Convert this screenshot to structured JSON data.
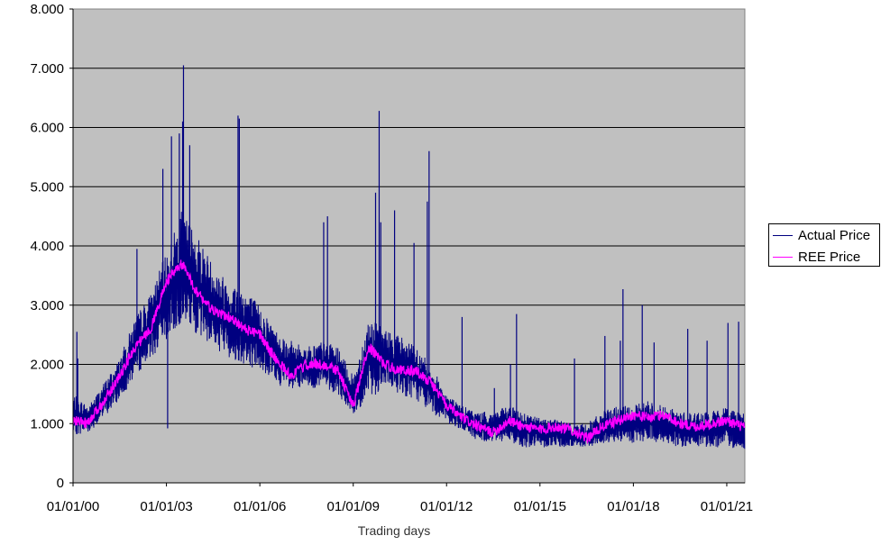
{
  "chart_data": {
    "type": "line",
    "title": "",
    "xlabel": "Trading days",
    "ylabel": "",
    "ylim": [
      0,
      8
    ],
    "yticks": [
      "0",
      "1.000",
      "2.000",
      "3.000",
      "4.000",
      "5.000",
      "6.000",
      "7.000",
      "8.000"
    ],
    "xlim": [
      "2000-01-01",
      "2021-08-01"
    ],
    "xticks": [
      "01/01/00",
      "01/01/03",
      "01/01/06",
      "01/01/09",
      "01/01/12",
      "01/01/15",
      "01/01/18",
      "01/01/21"
    ],
    "grid": "horizontal",
    "background": "#c0c0c0",
    "legend_position": "right",
    "series": [
      {
        "name": "Actual Price",
        "color": "#000080",
        "x": [
          "2000-01-01",
          "2000-07-01",
          "2001-01-01",
          "2001-07-01",
          "2002-01-01",
          "2002-07-01",
          "2003-01-01",
          "2003-07-01",
          "2004-01-01",
          "2004-07-01",
          "2005-01-01",
          "2005-07-01",
          "2006-01-01",
          "2006-07-01",
          "2007-01-01",
          "2007-07-01",
          "2008-01-01",
          "2008-07-01",
          "2009-01-01",
          "2009-07-01",
          "2010-01-01",
          "2010-07-01",
          "2011-01-01",
          "2011-07-01",
          "2012-01-01",
          "2012-07-01",
          "2013-01-01",
          "2013-07-01",
          "2014-01-01",
          "2014-07-01",
          "2015-01-01",
          "2015-07-01",
          "2016-01-01",
          "2016-07-01",
          "2017-01-01",
          "2017-07-01",
          "2018-01-01",
          "2018-07-01",
          "2019-01-01",
          "2019-07-01",
          "2020-01-01",
          "2020-07-01",
          "2021-01-01",
          "2021-07-01"
        ],
        "low": [
          0.8,
          0.85,
          1.1,
          1.4,
          1.8,
          2.1,
          2.4,
          2.7,
          2.5,
          2.3,
          2.1,
          2.0,
          1.9,
          1.7,
          1.5,
          1.6,
          1.6,
          1.5,
          1.1,
          1.4,
          1.6,
          1.5,
          1.4,
          1.2,
          1.0,
          0.9,
          0.7,
          0.7,
          0.7,
          0.6,
          0.6,
          0.6,
          0.6,
          0.6,
          0.65,
          0.7,
          0.65,
          0.7,
          0.65,
          0.6,
          0.6,
          0.6,
          0.6,
          0.55
        ],
        "high": [
          1.5,
          1.3,
          1.7,
          2.1,
          2.8,
          3.2,
          3.9,
          4.6,
          4.2,
          3.7,
          3.4,
          3.3,
          3.0,
          2.6,
          2.4,
          2.3,
          2.4,
          2.3,
          1.8,
          2.8,
          2.6,
          2.5,
          2.3,
          2.0,
          1.5,
          1.3,
          1.2,
          1.2,
          1.3,
          1.2,
          1.1,
          1.1,
          1.0,
          1.0,
          1.2,
          1.3,
          1.3,
          1.4,
          1.3,
          1.2,
          1.2,
          1.2,
          1.3,
          1.2
        ],
        "spikes": [
          {
            "x": "2000-02-15",
            "y": 2.55
          },
          {
            "x": "2000-02-25",
            "y": 2.1
          },
          {
            "x": "2002-01-20",
            "y": 3.95
          },
          {
            "x": "2002-11-20",
            "y": 5.3
          },
          {
            "x": "2003-01-15",
            "y": 0.92
          },
          {
            "x": "2003-03-01",
            "y": 5.85
          },
          {
            "x": "2003-06-01",
            "y": 5.9
          },
          {
            "x": "2003-07-10",
            "y": 6.1
          },
          {
            "x": "2003-07-20",
            "y": 7.05
          },
          {
            "x": "2003-10-01",
            "y": 5.7
          },
          {
            "x": "2005-04-20",
            "y": 6.2
          },
          {
            "x": "2005-05-05",
            "y": 6.15
          },
          {
            "x": "2008-01-20",
            "y": 4.4
          },
          {
            "x": "2008-03-05",
            "y": 4.5
          },
          {
            "x": "2009-09-20",
            "y": 4.9
          },
          {
            "x": "2009-11-01",
            "y": 6.28
          },
          {
            "x": "2009-11-20",
            "y": 4.4
          },
          {
            "x": "2010-05-01",
            "y": 4.6
          },
          {
            "x": "2010-12-15",
            "y": 4.05
          },
          {
            "x": "2011-05-20",
            "y": 4.75
          },
          {
            "x": "2011-06-10",
            "y": 5.6
          },
          {
            "x": "2012-07-01",
            "y": 2.8
          },
          {
            "x": "2013-07-15",
            "y": 1.6
          },
          {
            "x": "2014-01-20",
            "y": 2.0
          },
          {
            "x": "2014-04-01",
            "y": 2.85
          },
          {
            "x": "2016-02-10",
            "y": 2.1
          },
          {
            "x": "2017-02-01",
            "y": 2.48
          },
          {
            "x": "2017-08-01",
            "y": 2.4
          },
          {
            "x": "2017-09-01",
            "y": 3.27
          },
          {
            "x": "2018-04-15",
            "y": 3.0
          },
          {
            "x": "2018-09-01",
            "y": 2.37
          },
          {
            "x": "2019-10-01",
            "y": 2.6
          },
          {
            "x": "2020-05-15",
            "y": 2.4
          },
          {
            "x": "2021-01-15",
            "y": 2.7
          },
          {
            "x": "2021-05-20",
            "y": 2.72
          }
        ]
      },
      {
        "name": "REE Price",
        "color": "#ff00ff",
        "x": [
          "2000-01-01",
          "2000-07-01",
          "2001-01-01",
          "2001-07-01",
          "2002-01-01",
          "2002-07-01",
          "2003-01-01",
          "2003-07-01",
          "2004-01-01",
          "2004-07-01",
          "2005-01-01",
          "2005-07-01",
          "2006-01-01",
          "2006-07-01",
          "2007-01-01",
          "2007-07-01",
          "2008-01-01",
          "2008-07-01",
          "2009-01-01",
          "2009-07-01",
          "2010-01-01",
          "2010-07-01",
          "2011-01-01",
          "2011-07-01",
          "2012-01-01",
          "2012-07-01",
          "2013-01-01",
          "2013-07-01",
          "2014-01-01",
          "2014-07-01",
          "2015-01-01",
          "2015-07-01",
          "2016-01-01",
          "2016-07-01",
          "2017-01-01",
          "2017-07-01",
          "2018-01-01",
          "2018-07-01",
          "2019-01-01",
          "2019-07-01",
          "2020-01-01",
          "2020-07-01",
          "2021-01-01",
          "2021-07-01"
        ],
        "values": [
          1.05,
          1.0,
          1.4,
          1.8,
          2.3,
          2.6,
          3.4,
          3.7,
          3.2,
          2.9,
          2.8,
          2.6,
          2.5,
          2.1,
          1.8,
          2.0,
          2.0,
          1.9,
          1.3,
          2.3,
          2.0,
          1.9,
          1.9,
          1.7,
          1.3,
          1.1,
          0.95,
          0.85,
          1.05,
          0.95,
          0.9,
          0.95,
          0.9,
          0.75,
          0.95,
          1.05,
          1.15,
          1.1,
          1.15,
          1.0,
          0.95,
          1.0,
          1.05,
          0.95
        ]
      }
    ]
  }
}
